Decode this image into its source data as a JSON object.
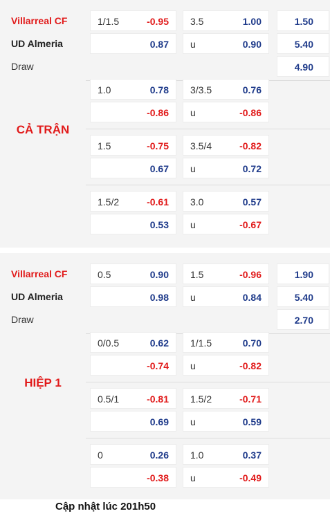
{
  "full_match": {
    "period_label": "CẢ TRẬN",
    "home_team": "Villarreal CF",
    "away_team": "UD Almeria",
    "draw_label": "Draw",
    "main": {
      "handicap": "1/1.5",
      "handicap_home": "-0.95",
      "handicap_away": "0.87",
      "ou_line": "3.5",
      "ou_over": "1.00",
      "ou_under_label": "u",
      "ou_under": "0.90",
      "x12_home": "1.50",
      "x12_away": "5.40",
      "x12_draw": "4.90"
    },
    "alts": [
      {
        "handicap": "1.0",
        "handicap_home": "0.78",
        "handicap_away": "-0.86",
        "ou_line": "3/3.5",
        "ou_over": "0.76",
        "ou_under_label": "u",
        "ou_under": "-0.86"
      },
      {
        "handicap": "1.5",
        "handicap_home": "-0.75",
        "handicap_away": "0.67",
        "ou_line": "3.5/4",
        "ou_over": "-0.82",
        "ou_under_label": "u",
        "ou_under": "0.72"
      },
      {
        "handicap": "1.5/2",
        "handicap_home": "-0.61",
        "handicap_away": "0.53",
        "ou_line": "3.0",
        "ou_over": "0.57",
        "ou_under_label": "u",
        "ou_under": "-0.67"
      }
    ]
  },
  "first_half": {
    "period_label": "HIỆP 1",
    "home_team": "Villarreal CF",
    "away_team": "UD Almeria",
    "draw_label": "Draw",
    "main": {
      "handicap": "0.5",
      "handicap_home": "0.90",
      "handicap_away": "0.98",
      "ou_line": "1.5",
      "ou_over": "-0.96",
      "ou_under_label": "u",
      "ou_under": "0.84",
      "x12_home": "1.90",
      "x12_away": "5.40",
      "x12_draw": "2.70"
    },
    "alts": [
      {
        "handicap": "0/0.5",
        "handicap_home": "0.62",
        "handicap_away": "-0.74",
        "ou_line": "1/1.5",
        "ou_over": "0.70",
        "ou_under_label": "u",
        "ou_under": "-0.82"
      },
      {
        "handicap": "0.5/1",
        "handicap_home": "-0.81",
        "handicap_away": "0.69",
        "ou_line": "1.5/2",
        "ou_over": "-0.71",
        "ou_under_label": "u",
        "ou_under": "0.59"
      },
      {
        "handicap": "0",
        "handicap_home": "0.26",
        "handicap_away": "-0.38",
        "ou_line": "1.0",
        "ou_over": "0.37",
        "ou_under_label": "u",
        "ou_under": "-0.49"
      }
    ]
  },
  "footer": {
    "updated": "Cập nhật lúc 201h50"
  },
  "colors": {
    "positive": "#1e3a8a",
    "negative": "#e11a1a",
    "team_home": "#e11a1a",
    "period_label": "#e11a1a",
    "panel_bg": "#f4f4f4"
  }
}
